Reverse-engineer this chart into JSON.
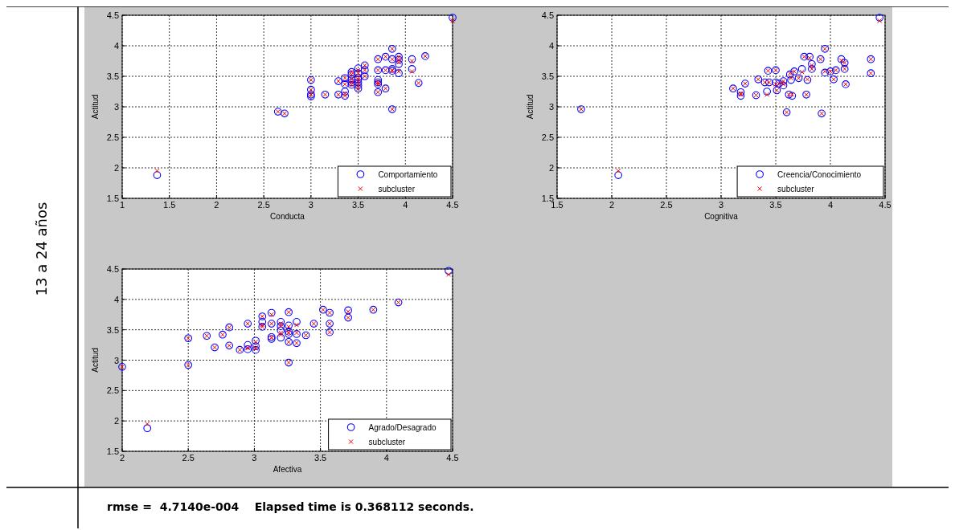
{
  "chart_data": [
    {
      "type": "scatter",
      "xlabel": "Conducta",
      "ylabel": "Actitud",
      "xlim": [
        1,
        4.5
      ],
      "xticks": [
        1,
        1.5,
        2,
        2.5,
        3,
        3.5,
        4,
        4.5
      ],
      "ylim": [
        1.5,
        4.5
      ],
      "yticks": [
        1.5,
        2,
        2.5,
        3,
        3.5,
        4,
        4.5
      ],
      "grid": true,
      "legend": "bottom right",
      "x": [
        1.37,
        2.65,
        2.72,
        3,
        3,
        3,
        3,
        3.15,
        3.29,
        3.29,
        3.36,
        3.36,
        3.36,
        3.36,
        3.43,
        3.43,
        3.43,
        3.43,
        3.43,
        3.5,
        3.5,
        3.5,
        3.5,
        3.5,
        3.5,
        3.5,
        3.57,
        3.57,
        3.57,
        3.71,
        3.71,
        3.71,
        3.71,
        3.71,
        3.71,
        3.79,
        3.79,
        3.79,
        3.86,
        3.86,
        3.86,
        3.86,
        3.86,
        3.93,
        3.93,
        3.93,
        3.93,
        4.07,
        4.07,
        4.14,
        4.21,
        4.5
      ],
      "series": [
        {
          "name": "Comportamiento",
          "color": "#0000ff",
          "marker": "circle",
          "values": [
            1.88,
            2.92,
            2.89,
            3.44,
            3.28,
            3.2,
            3.17,
            3.2,
            3.42,
            3.2,
            3.18,
            3.25,
            3.47,
            3.37,
            3.57,
            3.53,
            3.45,
            3.4,
            3.36,
            3.63,
            3.55,
            3.48,
            3.45,
            3.4,
            3.35,
            3.3,
            3.68,
            3.6,
            3.5,
            3.78,
            3.6,
            3.44,
            3.4,
            3.37,
            3.24,
            3.82,
            3.6,
            3.3,
            3.95,
            3.78,
            3.62,
            3.59,
            2.96,
            3.82,
            3.77,
            3.7,
            3.55,
            3.78,
            3.62,
            3.39,
            3.83,
            4.46
          ]
        },
        {
          "name": "subcluster",
          "color": "#ff0000",
          "marker": "cross",
          "values": [
            1.95,
            2.92,
            2.89,
            3.44,
            3.28,
            3.2,
            3.2,
            3.2,
            3.42,
            3.2,
            3.18,
            3.22,
            3.47,
            3.37,
            3.57,
            3.53,
            3.45,
            3.4,
            3.36,
            3.6,
            3.55,
            3.48,
            3.45,
            3.4,
            3.35,
            3.3,
            3.68,
            3.6,
            3.5,
            3.78,
            3.6,
            3.4,
            3.4,
            3.37,
            3.24,
            3.82,
            3.6,
            3.3,
            3.95,
            3.78,
            3.6,
            3.59,
            2.96,
            3.82,
            3.77,
            3.73,
            3.58,
            3.75,
            3.58,
            3.39,
            3.83,
            4.41
          ]
        }
      ]
    },
    {
      "type": "scatter",
      "xlabel": "Cognitiva",
      "ylabel": "Actitud",
      "xlim": [
        1.5,
        4.5
      ],
      "xticks": [
        1.5,
        2,
        2.5,
        3,
        3.5,
        4,
        4.5
      ],
      "ylim": [
        1.5,
        4.5
      ],
      "yticks": [
        1.5,
        2,
        2.5,
        3,
        3.5,
        4,
        4.5
      ],
      "grid": true,
      "legend": "bottom right",
      "x": [
        1.72,
        2.06,
        3.11,
        3.18,
        3.18,
        3.22,
        3.32,
        3.34,
        3.4,
        3.42,
        3.43,
        3.44,
        3.5,
        3.5,
        3.51,
        3.53,
        3.57,
        3.57,
        3.6,
        3.62,
        3.63,
        3.64,
        3.65,
        3.67,
        3.71,
        3.74,
        3.76,
        3.78,
        3.79,
        3.81,
        3.83,
        3.83,
        3.91,
        3.92,
        3.95,
        3.95,
        4.0,
        4.03,
        4.05,
        4.1,
        4.13,
        4.13,
        4.14,
        4.37,
        4.37,
        4.45
      ],
      "series": [
        {
          "name": "Creencia/Conocimiento",
          "color": "#0000ff",
          "marker": "circle",
          "values": [
            2.96,
            1.88,
            3.3,
            3.24,
            3.18,
            3.38,
            3.19,
            3.45,
            3.4,
            3.25,
            3.59,
            3.4,
            3.6,
            3.4,
            3.27,
            3.38,
            3.42,
            3.35,
            2.91,
            3.2,
            3.53,
            3.44,
            3.18,
            3.58,
            3.47,
            3.62,
            3.82,
            3.2,
            3.44,
            3.82,
            3.7,
            3.62,
            3.78,
            2.89,
            3.95,
            3.56,
            3.58,
            3.45,
            3.6,
            3.78,
            3.72,
            3.62,
            3.37,
            3.78,
            3.55,
            4.46
          ]
        },
        {
          "name": "subcluster",
          "color": "#ff0000",
          "marker": "cross",
          "values": [
            2.96,
            1.95,
            3.3,
            3.22,
            3.2,
            3.38,
            3.19,
            3.45,
            3.4,
            3.2,
            3.59,
            3.4,
            3.6,
            3.37,
            3.27,
            3.38,
            3.42,
            3.37,
            2.91,
            3.2,
            3.55,
            3.47,
            3.2,
            3.58,
            3.47,
            3.57,
            3.82,
            3.2,
            3.45,
            3.8,
            3.68,
            3.62,
            3.78,
            2.89,
            3.95,
            3.58,
            3.58,
            3.45,
            3.6,
            3.76,
            3.72,
            3.62,
            3.37,
            3.78,
            3.55,
            4.41
          ]
        }
      ]
    },
    {
      "type": "scatter",
      "xlabel": "Afectiva",
      "ylabel": "Actitud",
      "xlim": [
        2,
        4.5
      ],
      "xticks": [
        2,
        2.5,
        3,
        3.5,
        4,
        4.5
      ],
      "ylim": [
        1.5,
        4.5
      ],
      "yticks": [
        1.5,
        2,
        2.5,
        3,
        3.5,
        4,
        4.5
      ],
      "grid": true,
      "legend": "bottom right",
      "x": [
        2.0,
        2.19,
        2.5,
        2.5,
        2.64,
        2.7,
        2.76,
        2.81,
        2.81,
        2.89,
        2.95,
        2.95,
        2.95,
        3.01,
        3.01,
        3.01,
        3.06,
        3.06,
        3.06,
        3.13,
        3.13,
        3.13,
        3.13,
        3.2,
        3.2,
        3.2,
        3.2,
        3.26,
        3.26,
        3.26,
        3.26,
        3.26,
        3.26,
        3.32,
        3.32,
        3.32,
        3.39,
        3.45,
        3.52,
        3.57,
        3.57,
        3.57,
        3.71,
        3.71,
        3.9,
        4.09,
        4.47
      ],
      "series": [
        {
          "name": "Agrado/Desagrado",
          "color": "#0000ff",
          "marker": "circle",
          "values": [
            2.89,
            1.88,
            3.36,
            2.92,
            3.4,
            3.21,
            3.42,
            3.54,
            3.24,
            3.17,
            3.6,
            3.25,
            3.18,
            3.32,
            3.23,
            3.17,
            3.72,
            3.63,
            3.55,
            3.78,
            3.6,
            3.38,
            3.35,
            3.63,
            3.56,
            3.49,
            3.37,
            3.79,
            3.57,
            3.47,
            3.43,
            3.3,
            2.96,
            3.63,
            3.43,
            3.28,
            3.41,
            3.6,
            3.83,
            3.78,
            3.6,
            3.46,
            3.82,
            3.7,
            3.83,
            3.95,
            4.47
          ]
        },
        {
          "name": "subcluster",
          "color": "#ff0000",
          "marker": "cross",
          "values": [
            2.89,
            1.95,
            3.36,
            2.92,
            3.4,
            3.21,
            3.42,
            3.54,
            3.24,
            3.17,
            3.6,
            3.2,
            3.2,
            3.3,
            3.2,
            3.2,
            3.72,
            3.58,
            3.55,
            3.75,
            3.6,
            3.37,
            3.37,
            3.6,
            3.56,
            3.45,
            3.42,
            3.79,
            3.55,
            3.45,
            3.45,
            3.3,
            2.96,
            3.58,
            3.45,
            3.28,
            3.41,
            3.6,
            3.83,
            3.78,
            3.6,
            3.46,
            3.8,
            3.7,
            3.83,
            3.95,
            4.41
          ]
        }
      ]
    },
    {
      "type": "other",
      "annotations": [
        "13 a 24 años",
        "rmse =  4.7140e-004    Elapsed time is 0.368112 seconds."
      ]
    }
  ]
}
